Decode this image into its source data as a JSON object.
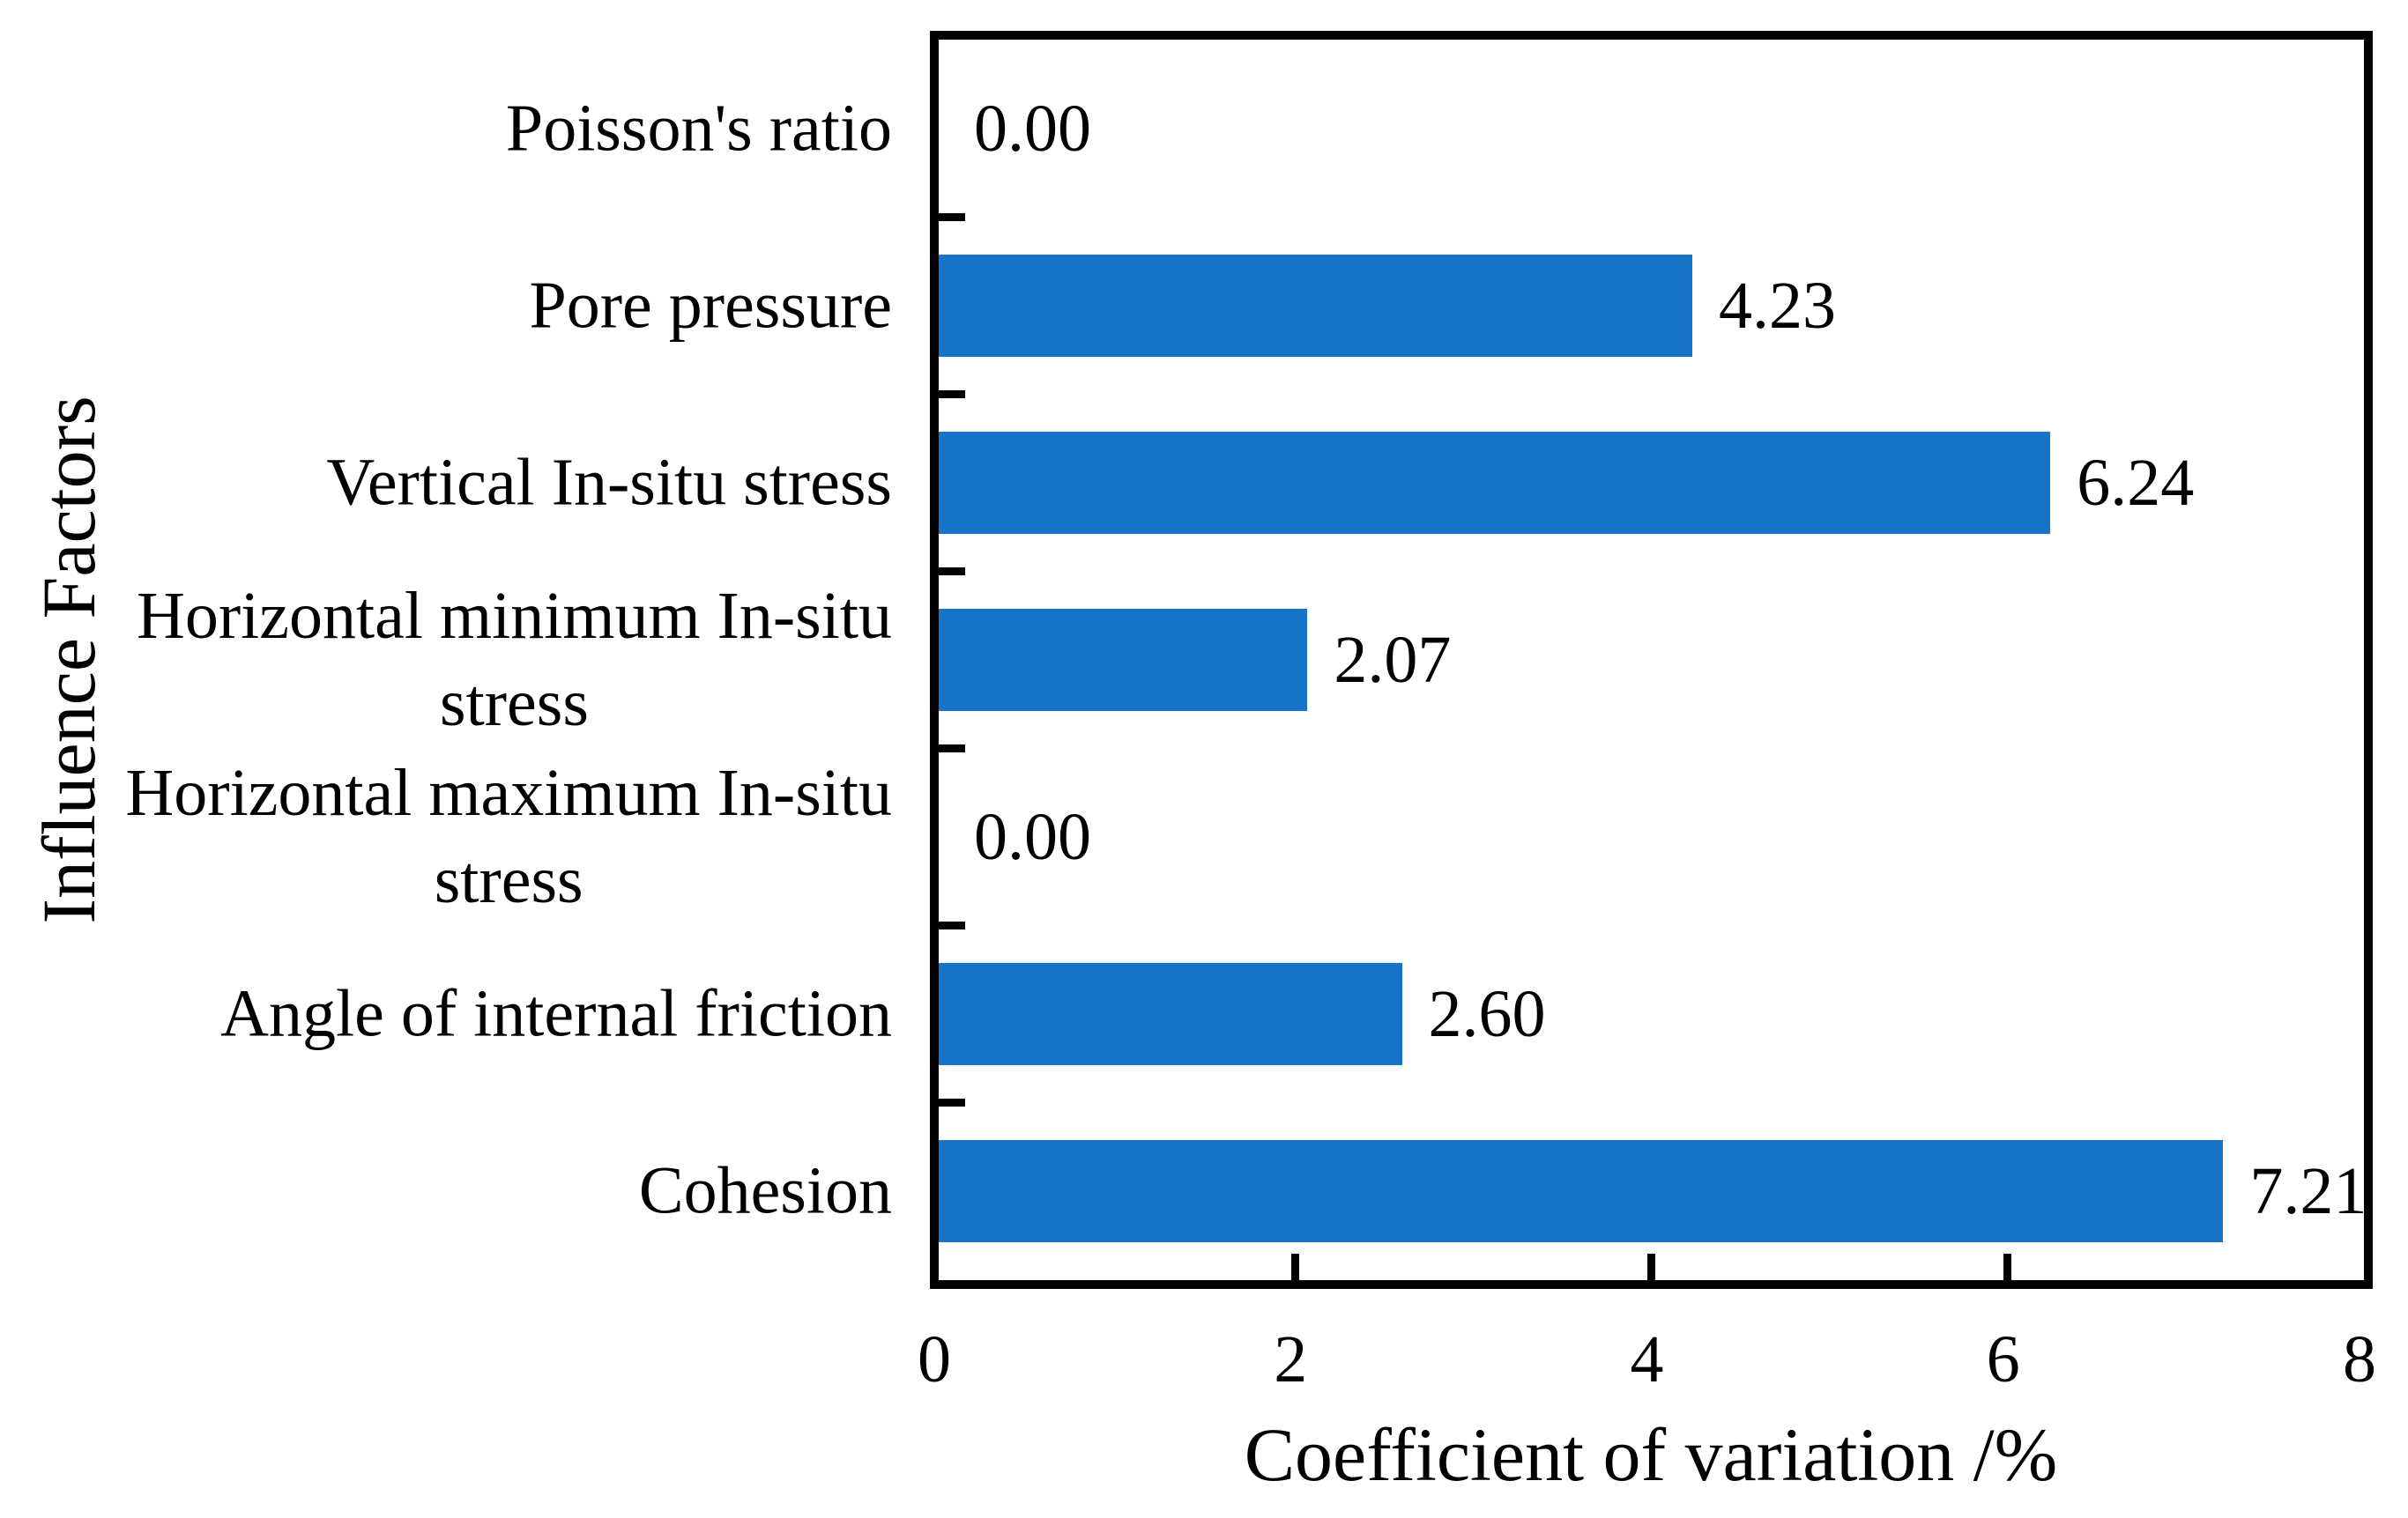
{
  "chart_data": {
    "type": "bar",
    "orientation": "horizontal",
    "title": "",
    "xlabel": "Coefficient of variation /%",
    "ylabel": "Influence Factors",
    "xlim": [
      0,
      8
    ],
    "x_ticks": [
      0,
      2,
      4,
      6,
      8
    ],
    "grid": false,
    "legend": null,
    "categories": [
      "Poisson's ratio",
      "Pore pressure",
      "Vertical In-situ stress",
      "Horizontal minimum In-situ stress",
      "Horizontal maximum In-situ stress",
      "Angle of internal friction",
      "Cohesion"
    ],
    "category_lines": [
      [
        "Poisson's ratio"
      ],
      [
        "Pore pressure"
      ],
      [
        "Vertical In-situ stress"
      ],
      [
        "Horizontal minimum In-situ",
        "stress"
      ],
      [
        "Horizontal maximum In-situ",
        "stress"
      ],
      [
        "Angle of internal friction"
      ],
      [
        "Cohesion"
      ]
    ],
    "values": [
      0.0,
      4.23,
      6.24,
      2.07,
      0.0,
      2.6,
      7.21
    ],
    "value_labels": [
      "0.00",
      "4.23",
      "6.24",
      "2.07",
      "0.00",
      "2.60",
      "7.21"
    ],
    "bar_color": "#1874C8"
  },
  "colors": {
    "bar": "#1874C8",
    "axis": "#000000",
    "text": "#000000",
    "background": "#FFFFFF"
  }
}
